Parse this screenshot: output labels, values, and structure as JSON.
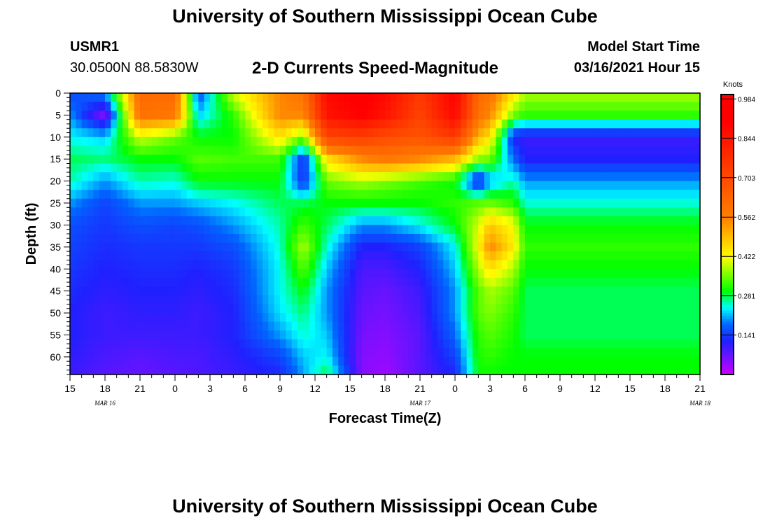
{
  "header": {
    "title": "University of Southern Mississippi Ocean Cube",
    "station": "USMR1",
    "coords": "30.0500N 88.5830W",
    "subtitle": "2-D Currents Speed-Magnitude",
    "model_start_label": "Model Start Time",
    "model_start_value": "03/16/2021 Hour 15"
  },
  "footer": {
    "title": "University of Southern Mississippi Ocean Cube"
  },
  "chart_data": {
    "type": "heatmap",
    "title": "2-D Currents Speed-Magnitude",
    "xlabel": "Forecast Time(Z)",
    "ylabel": "Depth (ft)",
    "x_tick_labels": [
      "15",
      "18",
      "21",
      "0",
      "3",
      "6",
      "9",
      "12",
      "15",
      "18",
      "21",
      "0",
      "3",
      "6",
      "9",
      "12",
      "15",
      "18",
      "21"
    ],
    "date_labels": [
      {
        "hour_index": 3,
        "label": "MAR 16"
      },
      {
        "hour_index": 30,
        "label": "MAR 17"
      },
      {
        "hour_index": 54,
        "label": "MAR 18"
      }
    ],
    "x_range_hours": [
      0,
      54
    ],
    "y_tick_labels": [
      "0",
      "5",
      "10",
      "15",
      "20",
      "25",
      "30",
      "35",
      "40",
      "45",
      "50",
      "55",
      "60"
    ],
    "ylim": [
      0,
      64
    ],
    "colorbar": {
      "unit_label": "Knots",
      "tick_labels": [
        "0.984",
        "0.844",
        "0.703",
        "0.562",
        "0.422",
        "0.281",
        "0.141"
      ],
      "ticks": [
        0.984,
        0.844,
        0.703,
        0.562,
        0.422,
        0.281,
        0.141
      ],
      "range": [
        0.0,
        1.0
      ]
    },
    "colors": {
      "stops": [
        "#cc00ff",
        "#2020ff",
        "#0066ff",
        "#00ffff",
        "#00ff00",
        "#ffff00",
        "#ff8000",
        "#ff0000"
      ],
      "stop_values": [
        0.0,
        0.12,
        0.18,
        0.24,
        0.3,
        0.42,
        0.56,
        0.9
      ]
    },
    "profiles": [
      {
        "hour": 0,
        "speeds": [
          0.15,
          0.2,
          0.24,
          0.28,
          0.26,
          0.2,
          0.16,
          0.15,
          0.14,
          0.13,
          0.12,
          0.12,
          0.11,
          0.1
        ]
      },
      {
        "hour": 3,
        "speeds": [
          0.2,
          0.05,
          0.22,
          0.27,
          0.2,
          0.15,
          0.14,
          0.13,
          0.12,
          0.11,
          0.1,
          0.1,
          0.09,
          0.08
        ]
      },
      {
        "hour": 6,
        "speeds": [
          0.62,
          0.6,
          0.4,
          0.3,
          0.26,
          0.2,
          0.16,
          0.14,
          0.13,
          0.12,
          0.11,
          0.1,
          0.08,
          0.07
        ]
      },
      {
        "hour": 9,
        "speeds": [
          0.62,
          0.58,
          0.35,
          0.3,
          0.25,
          0.2,
          0.15,
          0.14,
          0.13,
          0.12,
          0.11,
          0.1,
          0.09,
          0.08
        ]
      },
      {
        "hour": 11,
        "speeds": [
          0.15,
          0.22,
          0.3,
          0.34,
          0.3,
          0.22,
          0.16,
          0.14,
          0.12,
          0.11,
          0.1,
          0.1,
          0.09,
          0.09
        ]
      },
      {
        "hour": 14,
        "speeds": [
          0.4,
          0.32,
          0.3,
          0.33,
          0.3,
          0.24,
          0.2,
          0.16,
          0.14,
          0.13,
          0.12,
          0.12,
          0.11,
          0.1
        ]
      },
      {
        "hour": 18,
        "speeds": [
          0.55,
          0.55,
          0.45,
          0.33,
          0.3,
          0.28,
          0.26,
          0.25,
          0.24,
          0.24,
          0.23,
          0.2,
          0.15,
          0.12
        ]
      },
      {
        "hour": 20,
        "speeds": [
          0.6,
          0.55,
          0.36,
          0.13,
          0.13,
          0.28,
          0.33,
          0.38,
          0.34,
          0.3,
          0.27,
          0.25,
          0.22,
          0.2
        ]
      },
      {
        "hour": 22,
        "speeds": [
          0.88,
          0.85,
          0.72,
          0.45,
          0.35,
          0.3,
          0.28,
          0.25,
          0.22,
          0.2,
          0.2,
          0.22,
          0.24,
          0.3
        ]
      },
      {
        "hour": 25,
        "speeds": [
          0.92,
          0.9,
          0.74,
          0.55,
          0.38,
          0.3,
          0.2,
          0.12,
          0.09,
          0.08,
          0.07,
          0.06,
          0.05,
          0.05
        ]
      },
      {
        "hour": 27,
        "speeds": [
          0.88,
          0.85,
          0.7,
          0.58,
          0.36,
          0.3,
          0.2,
          0.12,
          0.09,
          0.07,
          0.06,
          0.05,
          0.04,
          0.03
        ]
      },
      {
        "hour": 30,
        "speeds": [
          0.75,
          0.72,
          0.68,
          0.55,
          0.33,
          0.3,
          0.24,
          0.15,
          0.12,
          0.1,
          0.09,
          0.08,
          0.08,
          0.08
        ]
      },
      {
        "hour": 33,
        "speeds": [
          0.9,
          0.88,
          0.75,
          0.5,
          0.3,
          0.32,
          0.3,
          0.24,
          0.22,
          0.2,
          0.2,
          0.18,
          0.15,
          0.12
        ]
      },
      {
        "hour": 35,
        "speeds": [
          0.62,
          0.6,
          0.5,
          0.36,
          0.1,
          0.34,
          0.4,
          0.42,
          0.38,
          0.34,
          0.34,
          0.32,
          0.31,
          0.3
        ]
      },
      {
        "hour": 36,
        "speeds": [
          0.6,
          0.55,
          0.45,
          0.35,
          0.2,
          0.35,
          0.48,
          0.55,
          0.45,
          0.38,
          0.36,
          0.34,
          0.32,
          0.3
        ]
      },
      {
        "hour": 38,
        "speeds": [
          0.45,
          0.35,
          0.12,
          0.18,
          0.26,
          0.32,
          0.42,
          0.44,
          0.38,
          0.34,
          0.32,
          0.31,
          0.3,
          0.3
        ]
      },
      {
        "hour": 39,
        "speeds": [
          0.38,
          0.32,
          0.1,
          0.12,
          0.2,
          0.25,
          0.3,
          0.32,
          0.3,
          0.28,
          0.28,
          0.28,
          0.3,
          0.3
        ]
      }
    ]
  }
}
